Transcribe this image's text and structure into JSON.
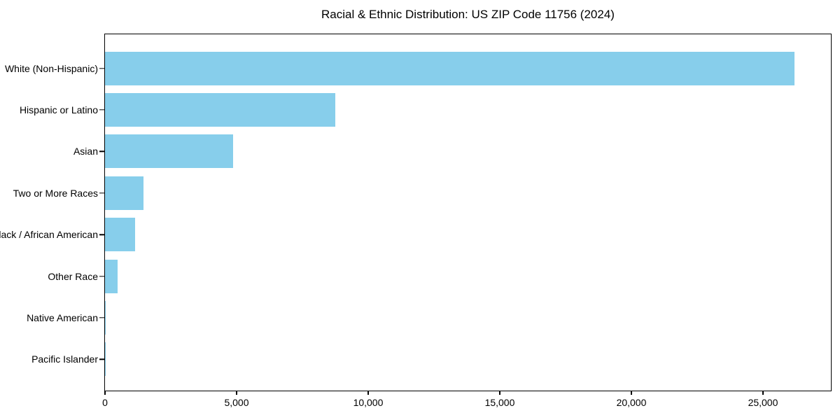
{
  "chart_data": {
    "type": "bar",
    "orientation": "horizontal",
    "title": "Racial & Ethnic Distribution: US ZIP Code 11756 (2024)",
    "categories": [
      "White (Non-Hispanic)",
      "Hispanic or Latino",
      "Asian",
      "Two or More Races",
      "Black / African American",
      "Other Race",
      "Native American",
      "Pacific Islander"
    ],
    "values": [
      26200,
      8750,
      4880,
      1450,
      1150,
      470,
      35,
      10
    ],
    "xlabel": "",
    "ylabel": "",
    "xlim": [
      0,
      27580
    ],
    "xticks": [
      0,
      5000,
      10000,
      15000,
      20000,
      25000
    ],
    "xtick_labels": [
      "0",
      "5,000",
      "10,000",
      "15,000",
      "20,000",
      "25,000"
    ],
    "bar_color": "#87CEEB",
    "text_color": "#000000",
    "grid": false,
    "legend": null
  }
}
